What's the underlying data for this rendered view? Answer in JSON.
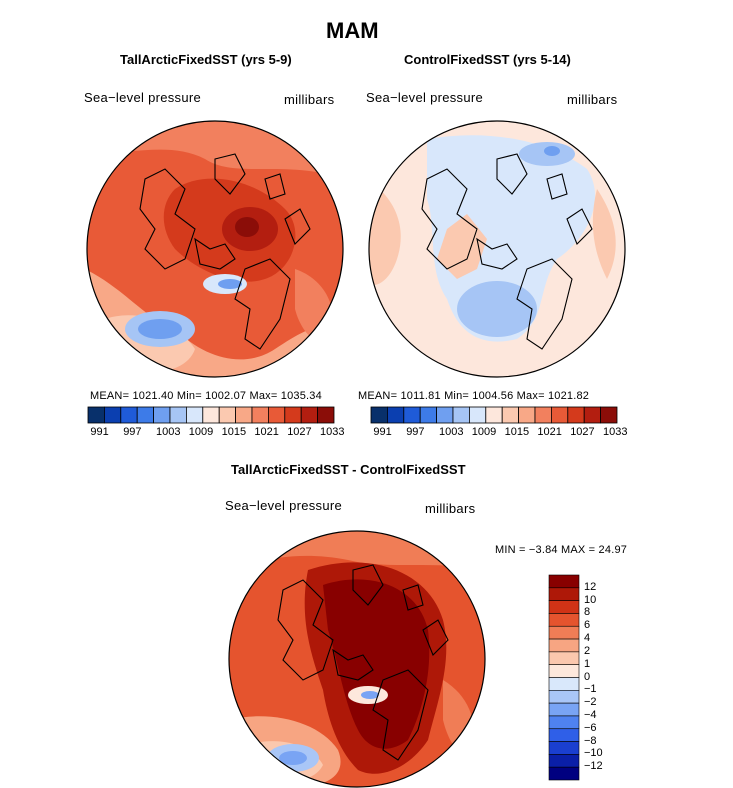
{
  "title": "MAM",
  "colors": {
    "abs_scale": [
      "#08306b",
      "#0b3fb0",
      "#1f5bd8",
      "#3d7be8",
      "#6f9ff0",
      "#a6c5f5",
      "#d8e7fb",
      "#fde7dc",
      "#fbc9b0",
      "#f8a887",
      "#f2805e",
      "#e85a37",
      "#d43a1c",
      "#b31e10",
      "#8b0d08"
    ],
    "diff_scale": [
      "#000080",
      "#0a1fa8",
      "#1a3fd0",
      "#2f5fe8",
      "#4f82f0",
      "#79a4f4",
      "#a9c6f7",
      "#d9e8fb",
      "#fde8dc",
      "#fbc8ae",
      "#f7a582",
      "#f07d56",
      "#e5542e",
      "#d03316",
      "#ae1808",
      "#880000"
    ]
  },
  "panel_left": {
    "heading": "TallArcticFixedSST (yrs 5-9)",
    "variable": "Sea−level pressure",
    "units": "millibars",
    "stats": "MEAN= 1021.40  Min= 1002.07  Max= 1035.34"
  },
  "panel_right": {
    "heading": "ControlFixedSST (yrs 5-14)",
    "variable": "Sea−level pressure",
    "units": "millibars",
    "stats": "MEAN= 1011.81  Min= 1004.56  Max= 1021.82"
  },
  "abs_colorbar": {
    "ticks": [
      "991",
      "997",
      "1003",
      "1009",
      "1015",
      "1021",
      "1027",
      "1033"
    ]
  },
  "panel_diff": {
    "heading": "TallArcticFixedSST - ControlFixedSST",
    "variable": "Sea−level pressure",
    "units": "millibars",
    "stats": "MIN =  −3.84  MAX =  24.97"
  },
  "diff_colorbar": {
    "ticks": [
      "12",
      "10",
      "8",
      "6",
      "4",
      "2",
      "1",
      "0",
      "−1",
      "−2",
      "−4",
      "−6",
      "−8",
      "−10",
      "−12"
    ]
  }
}
